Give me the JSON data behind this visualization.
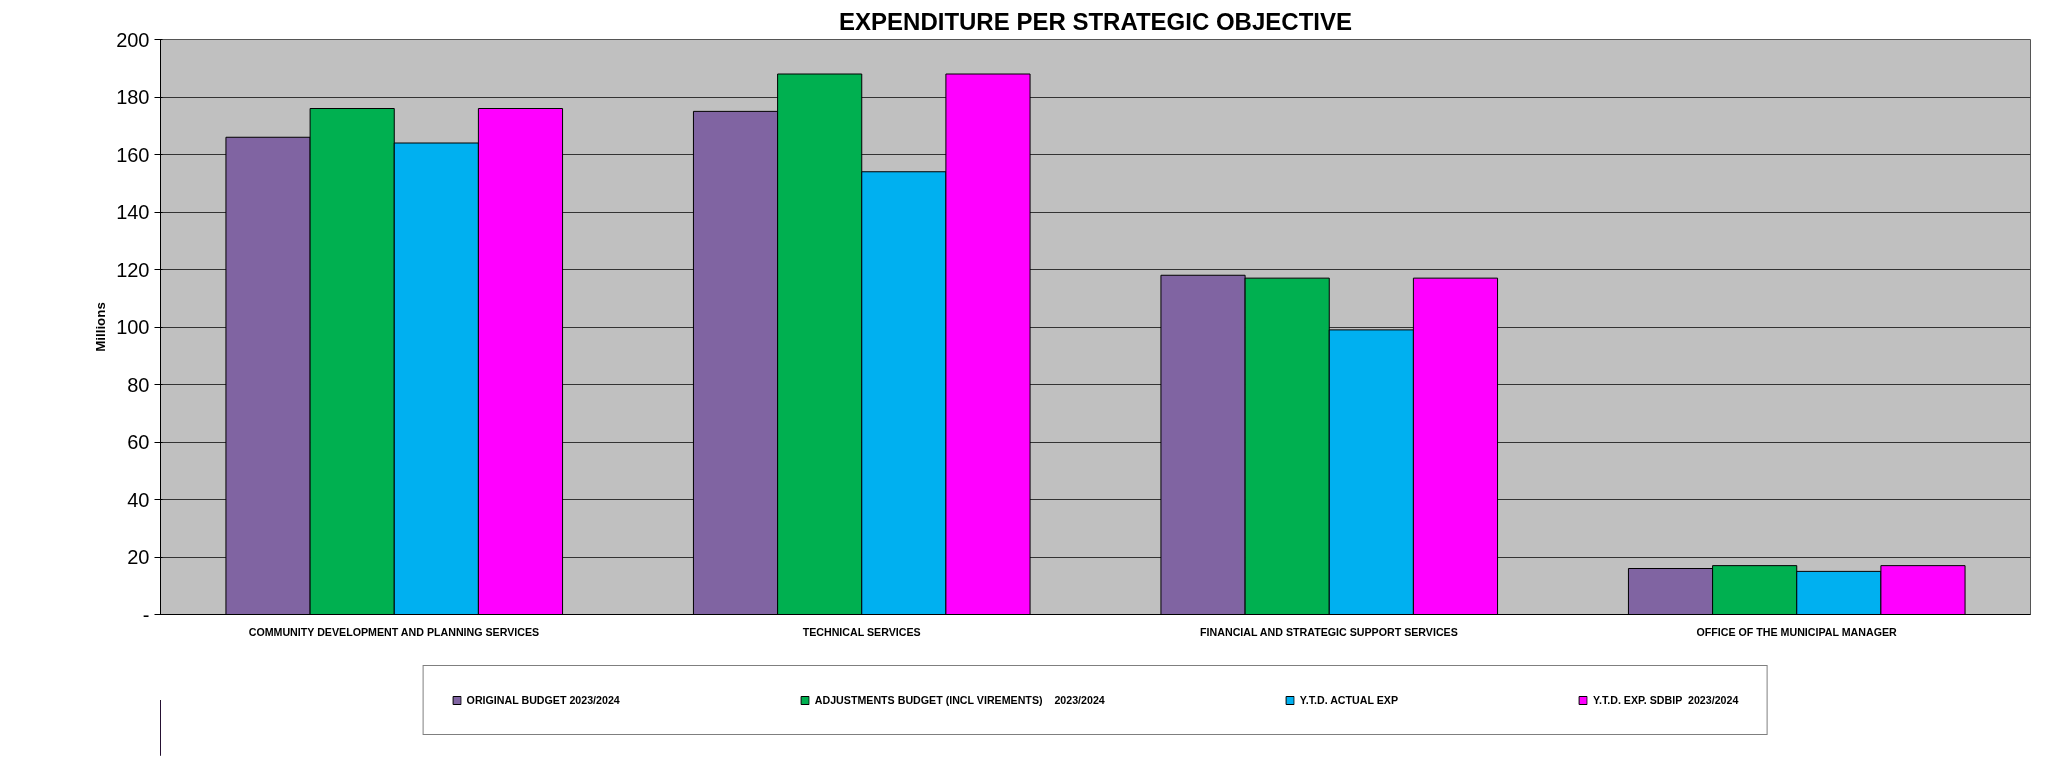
{
  "chart_data": {
    "type": "bar",
    "title": "EXPENDITURE PER STRATEGIC OBJECTIVE",
    "ylabel": "Millions",
    "categories": [
      "COMMUNITY DEVELOPMENT AND PLANNING SERVICES",
      "TECHNICAL SERVICES",
      "FINANCIAL AND STRATEGIC SUPPORT SERVICES",
      "OFFICE OF THE MUNICIPAL MANAGER"
    ],
    "series": [
      {
        "name": "ORIGINAL BUDGET 2023/2024",
        "color": "#8064a2",
        "values": [
          166,
          175,
          118,
          16
        ]
      },
      {
        "name": "ADJUSTMENTS BUDGET (INCL VIREMENTS)    2023/2024",
        "color": "#00b050",
        "values": [
          176,
          188,
          117,
          17
        ]
      },
      {
        "name": "Y.T.D. ACTUAL EXP",
        "color": "#00b0f0",
        "values": [
          164,
          154,
          99,
          15
        ]
      },
      {
        "name": "Y.T.D. EXP. SDBIP  2023/2024",
        "color": "#ff00ff",
        "values": [
          176,
          188,
          117,
          17
        ]
      }
    ],
    "ylim": [
      0,
      200
    ],
    "yticks": [
      {
        "value": 0,
        "label": "-"
      },
      20,
      40,
      60,
      80,
      100,
      120,
      140,
      160,
      180,
      200
    ],
    "grid": "y",
    "legend": "bottom"
  }
}
